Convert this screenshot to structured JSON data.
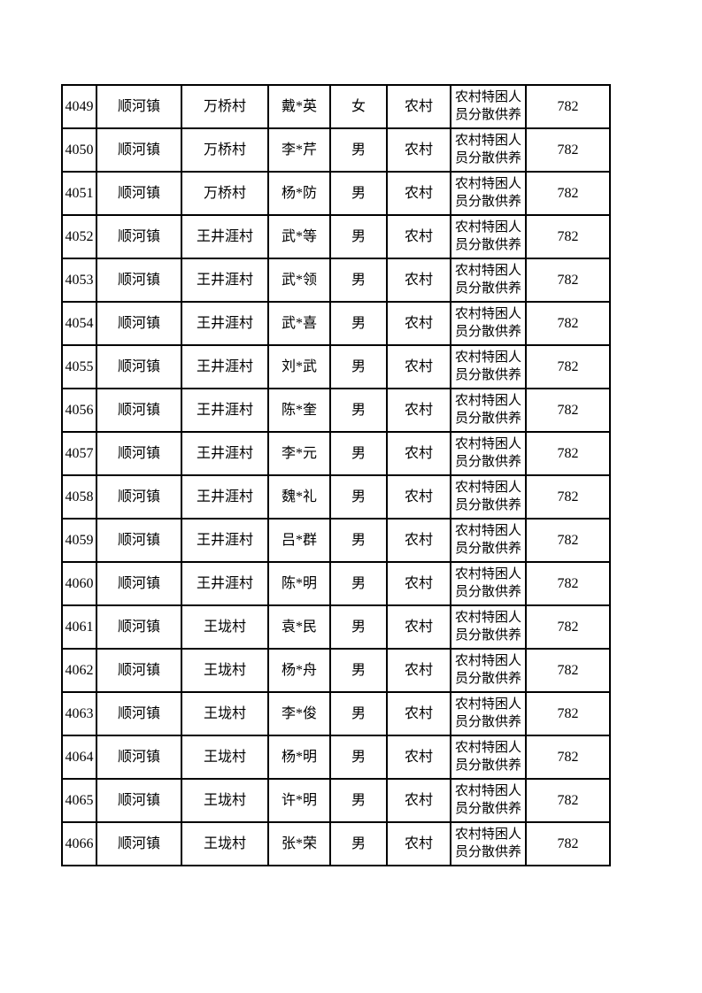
{
  "colors": {
    "page_bg": "#ffffff",
    "border": "#000000",
    "text": "#000000"
  },
  "table": {
    "column_ids": [
      "row-number",
      "town",
      "village",
      "name",
      "gender",
      "area-type",
      "assistance-type",
      "amount"
    ],
    "rows": [
      [
        "4049",
        "顺河镇",
        "万桥村",
        "戴*英",
        "女",
        "农村",
        "农村特困人员分散供养",
        "782"
      ],
      [
        "4050",
        "顺河镇",
        "万桥村",
        "李*芹",
        "男",
        "农村",
        "农村特困人员分散供养",
        "782"
      ],
      [
        "4051",
        "顺河镇",
        "万桥村",
        "杨*防",
        "男",
        "农村",
        "农村特困人员分散供养",
        "782"
      ],
      [
        "4052",
        "顺河镇",
        "王井涯村",
        "武*等",
        "男",
        "农村",
        "农村特困人员分散供养",
        "782"
      ],
      [
        "4053",
        "顺河镇",
        "王井涯村",
        "武*领",
        "男",
        "农村",
        "农村特困人员分散供养",
        "782"
      ],
      [
        "4054",
        "顺河镇",
        "王井涯村",
        "武*喜",
        "男",
        "农村",
        "农村特困人员分散供养",
        "782"
      ],
      [
        "4055",
        "顺河镇",
        "王井涯村",
        "刘*武",
        "男",
        "农村",
        "农村特困人员分散供养",
        "782"
      ],
      [
        "4056",
        "顺河镇",
        "王井涯村",
        "陈*奎",
        "男",
        "农村",
        "农村特困人员分散供养",
        "782"
      ],
      [
        "4057",
        "顺河镇",
        "王井涯村",
        "李*元",
        "男",
        "农村",
        "农村特困人员分散供养",
        "782"
      ],
      [
        "4058",
        "顺河镇",
        "王井涯村",
        "魏*礼",
        "男",
        "农村",
        "农村特困人员分散供养",
        "782"
      ],
      [
        "4059",
        "顺河镇",
        "王井涯村",
        "吕*群",
        "男",
        "农村",
        "农村特困人员分散供养",
        "782"
      ],
      [
        "4060",
        "顺河镇",
        "王井涯村",
        "陈*明",
        "男",
        "农村",
        "农村特困人员分散供养",
        "782"
      ],
      [
        "4061",
        "顺河镇",
        "王垅村",
        "袁*民",
        "男",
        "农村",
        "农村特困人员分散供养",
        "782"
      ],
      [
        "4062",
        "顺河镇",
        "王垅村",
        "杨*舟",
        "男",
        "农村",
        "农村特困人员分散供养",
        "782"
      ],
      [
        "4063",
        "顺河镇",
        "王垅村",
        "李*俊",
        "男",
        "农村",
        "农村特困人员分散供养",
        "782"
      ],
      [
        "4064",
        "顺河镇",
        "王垅村",
        "杨*明",
        "男",
        "农村",
        "农村特困人员分散供养",
        "782"
      ],
      [
        "4065",
        "顺河镇",
        "王垅村",
        "许*明",
        "男",
        "农村",
        "农村特困人员分散供养",
        "782"
      ],
      [
        "4066",
        "顺河镇",
        "王垅村",
        "张*荣",
        "男",
        "农村",
        "农村特困人员分散供养",
        "782"
      ]
    ]
  }
}
